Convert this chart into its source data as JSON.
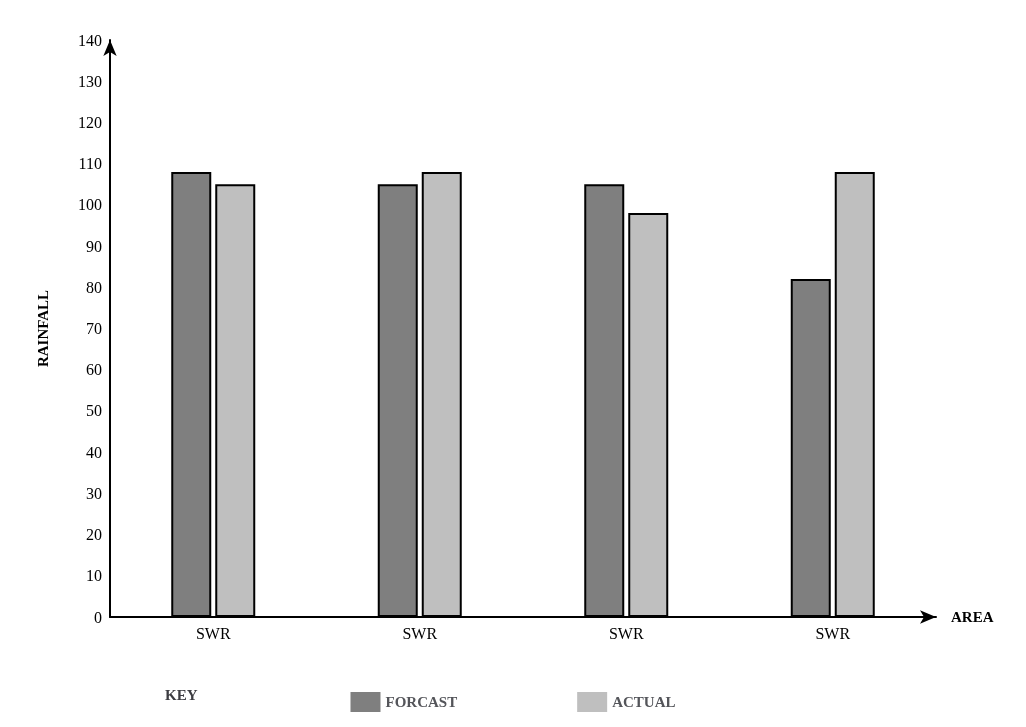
{
  "chart_data": {
    "type": "bar",
    "xlabel": "AREA",
    "ylabel": "RAINFALL",
    "legend_title": "KEY",
    "categories": [
      "SWR",
      "SWR",
      "SWR",
      "SWR"
    ],
    "series": [
      {
        "name": "FORCAST",
        "color": "#7f7f7f",
        "values": [
          108,
          105,
          105,
          82
        ]
      },
      {
        "name": "ACTUAL",
        "color": "#bfbfbf",
        "values": [
          105,
          108,
          98,
          108
        ]
      }
    ],
    "ylim": [
      0,
      140
    ],
    "yticks": [
      0,
      10,
      20,
      30,
      40,
      50,
      60,
      70,
      80,
      90,
      100,
      110,
      120,
      130,
      140
    ],
    "grid": false,
    "legend": "bottom"
  }
}
